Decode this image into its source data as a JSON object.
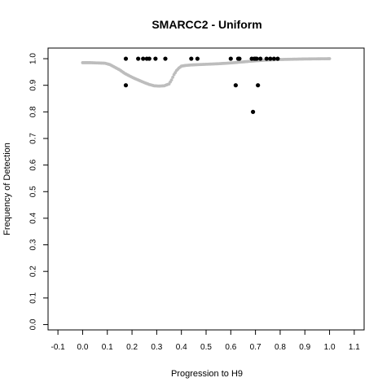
{
  "chart_data": {
    "type": "scatter",
    "title": "SMARCC2 - Uniform",
    "xlabel": "Progression to H9",
    "ylabel": "Frequency of Detection",
    "xlim": [
      -0.14,
      1.14
    ],
    "ylim": [
      -0.02,
      1.04
    ],
    "x_ticks": [
      "-0.1",
      "0.0",
      "0.1",
      "0.2",
      "0.3",
      "0.4",
      "0.5",
      "0.6",
      "0.7",
      "0.8",
      "0.9",
      "1.0",
      "1.1"
    ],
    "y_ticks": [
      "0.0",
      "0.1",
      "0.2",
      "0.3",
      "0.4",
      "0.5",
      "0.6",
      "0.7",
      "0.8",
      "0.9",
      "1.0"
    ],
    "grid": false,
    "legend": "none",
    "colors": {
      "points": "#000000",
      "smooth": "#bdbdbd",
      "axes": "#000000"
    },
    "series": [
      {
        "kind": "points",
        "x": [
          0.175,
          0.175,
          0.225,
          0.245,
          0.26,
          0.27,
          0.295,
          0.335,
          0.44,
          0.465,
          0.6,
          0.62,
          0.63,
          0.635,
          0.685,
          0.69,
          0.695,
          0.7,
          0.705,
          0.71,
          0.72,
          0.745,
          0.76,
          0.775,
          0.79
        ],
        "y": [
          1.0,
          0.9,
          1.0,
          1.0,
          1.0,
          1.0,
          1.0,
          1.0,
          1.0,
          1.0,
          1.0,
          0.9,
          1.0,
          1.0,
          1.0,
          0.8,
          1.0,
          1.0,
          1.0,
          0.9,
          1.0,
          1.0,
          1.0,
          1.0,
          1.0
        ]
      },
      {
        "kind": "smooth",
        "x": [
          0.0,
          0.03,
          0.06,
          0.09,
          0.11,
          0.13,
          0.15,
          0.17,
          0.19,
          0.21,
          0.23,
          0.25,
          0.27,
          0.29,
          0.31,
          0.33,
          0.35,
          0.36,
          0.37,
          0.38,
          0.39,
          0.4,
          0.42,
          0.45,
          0.5,
          0.55,
          0.6,
          0.65,
          0.7,
          0.75,
          0.8,
          0.9,
          1.0
        ],
        "y": [
          0.985,
          0.985,
          0.984,
          0.983,
          0.978,
          0.968,
          0.958,
          0.945,
          0.935,
          0.926,
          0.918,
          0.91,
          0.903,
          0.898,
          0.897,
          0.898,
          0.905,
          0.92,
          0.94,
          0.955,
          0.965,
          0.972,
          0.975,
          0.977,
          0.979,
          0.981,
          0.984,
          0.988,
          0.992,
          0.995,
          0.997,
          0.999,
          1.0
        ]
      }
    ]
  }
}
